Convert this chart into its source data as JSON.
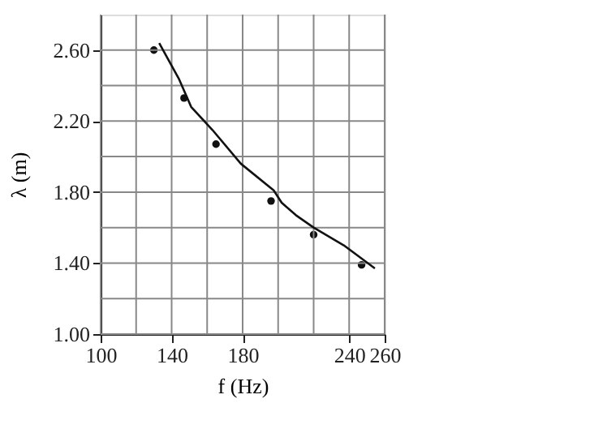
{
  "chart_data": {
    "type": "scatter",
    "xlabel": "f (Hz)",
    "ylabel": "λ (m)",
    "xlim": [
      100,
      260
    ],
    "ylim": [
      1.0,
      2.8
    ],
    "xticks": [
      100,
      {
        "value": 120,
        "label": null
      },
      140,
      {
        "value": 160,
        "label": null
      },
      180,
      {
        "value": 200,
        "label": null
      },
      {
        "value": 220,
        "label": null
      },
      240,
      260
    ],
    "yticks": [
      {
        "value": 1.0,
        "label": "1.00"
      },
      {
        "value": 1.2,
        "label": null
      },
      {
        "value": 1.4,
        "label": "1.40"
      },
      {
        "value": 1.6,
        "label": null
      },
      {
        "value": 1.8,
        "label": "1.80"
      },
      {
        "value": 2.0,
        "label": null
      },
      {
        "value": 2.2,
        "label": "2.20"
      },
      {
        "value": 2.4,
        "label": null
      },
      {
        "value": 2.6,
        "label": "2.60"
      }
    ],
    "grid": true,
    "marker": "circle",
    "series": [
      {
        "type": "scatter",
        "color": "#111111",
        "x": [
          130,
          147,
          165,
          196,
          220,
          247
        ],
        "values": [
          2.6,
          2.33,
          2.07,
          1.75,
          1.56,
          1.39
        ]
      },
      {
        "type": "line",
        "color": "#111111",
        "marker": "none",
        "line_style": "solid",
        "x": [
          133,
          144,
          151,
          163,
          179,
          197.5,
          202,
          210,
          220,
          237,
          254.5
        ],
        "values": [
          2.64,
          2.44,
          2.28,
          2.15,
          1.96,
          1.81,
          1.74,
          1.67,
          1.6,
          1.5,
          1.37
        ]
      }
    ]
  }
}
